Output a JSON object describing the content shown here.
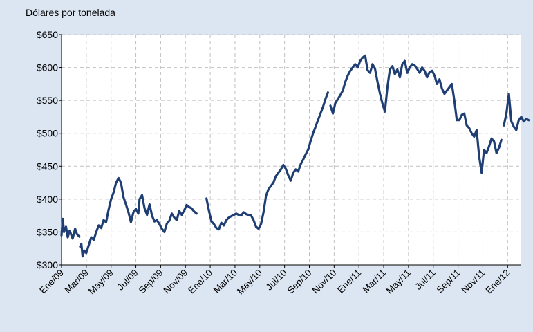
{
  "chart_data": {
    "type": "line",
    "title": "",
    "ylabel": "Dólares por tonelada",
    "xlabel": "",
    "ylim": [
      300,
      650
    ],
    "y_ticks": [
      300,
      350,
      400,
      450,
      500,
      550,
      600,
      650
    ],
    "y_tick_labels": [
      "$300",
      "$350",
      "$400",
      "$450",
      "$500",
      "$550",
      "$600",
      "$650"
    ],
    "x_tick_labels": [
      "Ene/09",
      "Mar/09",
      "May/09",
      "Jul/09",
      "Sep/09",
      "Nov/09",
      "Ene/10",
      "Mar/10",
      "May/10",
      "Jul/10",
      "Sep/10",
      "Nov/10",
      "Ene/11",
      "Mar/11",
      "May/11",
      "Jul/11",
      "Sep/11",
      "Nov/11",
      "Ene/12"
    ],
    "grid": true,
    "colors": {
      "line": "#1f3f74",
      "grid": "#c0c0c0",
      "background": "#dce6f2",
      "plot": "#ffffff"
    },
    "series": [
      {
        "segments": [
          [
            [
              0.0,
              345
            ],
            [
              0.05,
              370
            ],
            [
              0.1,
              350
            ],
            [
              0.18,
              358
            ],
            [
              0.25,
              342
            ],
            [
              0.33,
              352
            ],
            [
              0.45,
              340
            ],
            [
              0.55,
              355
            ],
            [
              0.62,
              347
            ],
            [
              0.72,
              343
            ]
          ],
          [
            [
              0.75,
              328
            ],
            [
              0.8,
              332
            ],
            [
              0.85,
              313
            ],
            [
              0.92,
              322
            ],
            [
              1.0,
              318
            ],
            [
              1.1,
              330
            ],
            [
              1.2,
              342
            ],
            [
              1.3,
              338
            ],
            [
              1.4,
              350
            ],
            [
              1.5,
              360
            ],
            [
              1.6,
              356
            ],
            [
              1.7,
              368
            ],
            [
              1.8,
              365
            ],
            [
              1.9,
              384
            ],
            [
              2.0,
              400
            ],
            [
              2.1,
              410
            ],
            [
              2.2,
              425
            ],
            [
              2.3,
              432
            ],
            [
              2.4,
              425
            ],
            [
              2.5,
              403
            ],
            [
              2.6,
              392
            ],
            [
              2.7,
              380
            ],
            [
              2.8,
              365
            ],
            [
              2.9,
              380
            ],
            [
              3.0,
              385
            ],
            [
              3.1,
              378
            ],
            [
              3.15,
              400
            ],
            [
              3.25,
              406
            ],
            [
              3.35,
              386
            ],
            [
              3.45,
              376
            ],
            [
              3.55,
              392
            ],
            [
              3.65,
              375
            ],
            [
              3.75,
              366
            ],
            [
              3.85,
              368
            ],
            [
              3.95,
              362
            ],
            [
              4.05,
              355
            ],
            [
              4.15,
              350
            ],
            [
              4.25,
              363
            ],
            [
              4.35,
              367
            ],
            [
              4.45,
              378
            ],
            [
              4.55,
              372
            ],
            [
              4.65,
              368
            ],
            [
              4.75,
              382
            ],
            [
              4.85,
              376
            ],
            [
              4.95,
              383
            ],
            [
              5.05,
              391
            ],
            [
              5.15,
              388
            ],
            [
              5.25,
              386
            ],
            [
              5.35,
              381
            ],
            [
              5.45,
              378
            ]
          ],
          [
            [
              5.85,
              401
            ],
            [
              5.95,
              382
            ],
            [
              6.05,
              366
            ],
            [
              6.15,
              362
            ],
            [
              6.25,
              356
            ],
            [
              6.35,
              354
            ],
            [
              6.45,
              364
            ],
            [
              6.55,
              360
            ],
            [
              6.65,
              368
            ],
            [
              6.75,
              372
            ],
            [
              6.85,
              374
            ],
            [
              6.95,
              376
            ],
            [
              7.05,
              378
            ],
            [
              7.15,
              376
            ],
            [
              7.25,
              375
            ],
            [
              7.35,
              380
            ],
            [
              7.45,
              377
            ],
            [
              7.55,
              376
            ],
            [
              7.65,
              375
            ],
            [
              7.75,
              368
            ],
            [
              7.85,
              358
            ],
            [
              7.95,
              355
            ],
            [
              8.05,
              362
            ],
            [
              8.15,
              380
            ],
            [
              8.25,
              405
            ],
            [
              8.35,
              415
            ],
            [
              8.45,
              420
            ],
            [
              8.55,
              425
            ],
            [
              8.65,
              435
            ],
            [
              8.75,
              440
            ],
            [
              8.85,
              445
            ],
            [
              8.95,
              452
            ],
            [
              9.05,
              446
            ],
            [
              9.15,
              436
            ],
            [
              9.25,
              428
            ],
            [
              9.35,
              440
            ],
            [
              9.45,
              445
            ],
            [
              9.55,
              442
            ],
            [
              9.65,
              453
            ],
            [
              9.75,
              460
            ],
            [
              9.85,
              468
            ],
            [
              9.95,
              475
            ],
            [
              10.05,
              488
            ],
            [
              10.15,
              500
            ],
            [
              10.25,
              510
            ],
            [
              10.35,
              520
            ],
            [
              10.45,
              530
            ],
            [
              10.55,
              540
            ],
            [
              10.65,
              552
            ],
            [
              10.75,
              562
            ]
          ],
          [
            [
              10.85,
              542
            ],
            [
              10.95,
              530
            ],
            [
              11.05,
              546
            ],
            [
              11.15,
              552
            ],
            [
              11.25,
              558
            ],
            [
              11.35,
              565
            ],
            [
              11.45,
              578
            ],
            [
              11.55,
              588
            ],
            [
              11.65,
              595
            ],
            [
              11.75,
              600
            ],
            [
              11.85,
              605
            ],
            [
              11.95,
              600
            ],
            [
              12.05,
              610
            ],
            [
              12.15,
              615
            ],
            [
              12.25,
              618
            ],
            [
              12.35,
              596
            ],
            [
              12.45,
              592
            ],
            [
              12.55,
              605
            ],
            [
              12.65,
              598
            ],
            [
              12.75,
              578
            ],
            [
              12.85,
              560
            ],
            [
              12.95,
              545
            ],
            [
              13.05,
              533
            ],
            [
              13.15,
              570
            ],
            [
              13.25,
              597
            ],
            [
              13.35,
              602
            ],
            [
              13.45,
              590
            ],
            [
              13.55,
              597
            ],
            [
              13.65,
              585
            ],
            [
              13.75,
              605
            ],
            [
              13.85,
              610
            ],
            [
              13.95,
              592
            ],
            [
              14.05,
              600
            ],
            [
              14.15,
              605
            ],
            [
              14.25,
              603
            ],
            [
              14.35,
              598
            ],
            [
              14.45,
              592
            ],
            [
              14.55,
              600
            ],
            [
              14.65,
              595
            ],
            [
              14.75,
              585
            ],
            [
              14.85,
              593
            ],
            [
              14.95,
              595
            ],
            [
              15.05,
              588
            ],
            [
              15.15,
              575
            ],
            [
              15.25,
              582
            ],
            [
              15.35,
              568
            ],
            [
              15.45,
              560
            ],
            [
              15.55,
              565
            ],
            [
              15.65,
              570
            ],
            [
              15.75,
              575
            ],
            [
              15.85,
              550
            ],
            [
              15.95,
              520
            ],
            [
              16.05,
              520
            ],
            [
              16.15,
              528
            ],
            [
              16.25,
              530
            ],
            [
              16.35,
              512
            ],
            [
              16.45,
              508
            ],
            [
              16.55,
              500
            ],
            [
              16.65,
              495
            ],
            [
              16.75,
              505
            ],
            [
              16.85,
              465
            ],
            [
              16.95,
              440
            ],
            [
              17.05,
              475
            ],
            [
              17.15,
              470
            ],
            [
              17.25,
              480
            ],
            [
              17.35,
              492
            ],
            [
              17.45,
              488
            ],
            [
              17.55,
              470
            ],
            [
              17.65,
              478
            ],
            [
              17.75,
              490
            ]
          ],
          [
            [
              17.85,
              512
            ],
            [
              17.95,
              530
            ],
            [
              18.05,
              560
            ],
            [
              18.15,
              518
            ],
            [
              18.25,
              510
            ],
            [
              18.35,
              505
            ],
            [
              18.45,
              520
            ],
            [
              18.55,
              525
            ],
            [
              18.65,
              518
            ],
            [
              18.75,
              522
            ],
            [
              18.85,
              520
            ]
          ]
        ]
      }
    ]
  }
}
